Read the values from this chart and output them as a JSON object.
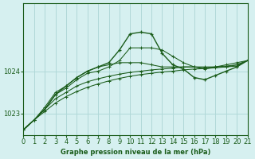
{
  "bg_color": "#d6f0f0",
  "grid_color": "#b0d8d8",
  "line_color": "#1a5c1a",
  "title": "Graphe pression niveau de la mer (hPa)",
  "xlim": [
    0,
    21
  ],
  "ylim": [
    1022.5,
    1025.6
  ],
  "xticks": [
    0,
    1,
    2,
    3,
    4,
    5,
    6,
    7,
    8,
    9,
    10,
    11,
    12,
    13,
    14,
    15,
    16,
    17,
    18,
    19,
    20,
    21
  ],
  "yticks": [
    1023,
    1024
  ],
  "series": [
    [
      1022.62,
      1022.85,
      1023.1,
      1023.45,
      1023.6,
      1023.8,
      1023.95,
      1024.0,
      1024.1,
      1024.25,
      1024.55,
      1024.55,
      1024.55,
      1024.5,
      1024.35,
      1024.2,
      1024.1,
      1024.05,
      1024.1,
      1024.15,
      1024.2,
      1024.25
    ],
    [
      1022.62,
      1022.85,
      1023.1,
      1023.45,
      1023.65,
      1023.85,
      1024.0,
      1024.1,
      1024.2,
      1024.5,
      1024.88,
      1024.92,
      1024.88,
      1024.42,
      1024.15,
      1024.05,
      1023.85,
      1023.8,
      1023.9,
      1024.0,
      1024.1,
      1024.25
    ],
    [
      1022.62,
      1022.85,
      1023.15,
      1023.5,
      1023.65,
      1023.85,
      1024.0,
      1024.1,
      1024.15,
      1024.2,
      1024.2,
      1024.2,
      1024.15,
      1024.1,
      1024.1,
      1024.1,
      1024.1,
      1024.1,
      1024.1,
      1024.1,
      1024.15,
      1024.25
    ],
    [
      1022.62,
      1022.85,
      1023.1,
      1023.35,
      1023.5,
      1023.65,
      1023.75,
      1023.82,
      1023.88,
      1023.93,
      1023.97,
      1024.0,
      1024.03,
      1024.05,
      1024.07,
      1024.1,
      1024.1,
      1024.08,
      1024.1,
      1024.12,
      1024.15,
      1024.25
    ],
    [
      1022.62,
      1022.85,
      1023.05,
      1023.25,
      1023.4,
      1023.52,
      1023.62,
      1023.7,
      1023.77,
      1023.83,
      1023.88,
      1023.92,
      1023.95,
      1023.98,
      1024.0,
      1024.03,
      1024.05,
      1024.06,
      1024.08,
      1024.1,
      1024.12,
      1024.25
    ]
  ]
}
